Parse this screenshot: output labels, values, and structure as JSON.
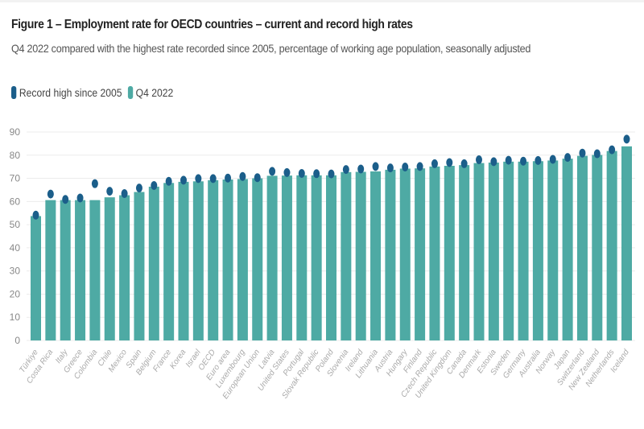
{
  "header": {
    "title": "Figure 1 – Employment rate for OECD countries – current and record high rates",
    "subtitle": "Q4 2022 compared with the highest rate recorded since 2005, percentage of working age population, seasonally adjusted"
  },
  "legend": [
    {
      "label": "Record high since 2005",
      "color": "#1b5e8a",
      "icon": "record-high-swatch"
    },
    {
      "label": "Q4 2022",
      "color": "#4eaaa4",
      "icon": "q4-2022-swatch"
    }
  ],
  "chart_data": {
    "type": "bar",
    "title": "Figure 1 – Employment rate for OECD countries – current and record high rates",
    "subtitle": "Q4 2022 compared with the highest rate recorded since 2005, percentage of working age population, seasonally adjusted",
    "xlabel": "",
    "ylabel": "",
    "ylim": [
      0,
      90
    ],
    "yticks": [
      0,
      10,
      20,
      30,
      40,
      50,
      60,
      70,
      80,
      90
    ],
    "grid": true,
    "legend_position": "top-left",
    "categories": [
      "Türkiye",
      "Costa Rica",
      "Italy",
      "Greece",
      "Colombia",
      "Chile",
      "Mexico",
      "Spain",
      "Belgium",
      "France",
      "Korea",
      "Israel",
      "OECD",
      "Euro area",
      "Luxembourg",
      "European Union",
      "Latvia",
      "United States",
      "Portugal",
      "Slovak Republic",
      "Poland",
      "Slovenia",
      "Ireland",
      "Lithuania",
      "Austria",
      "Hungary",
      "Finland",
      "Czech Republic",
      "United Kingdom",
      "Canada",
      "Denmark",
      "Estonia",
      "Sweden",
      "Germany",
      "Australia",
      "Norway",
      "Japan",
      "Switzerland",
      "New Zealand",
      "Netherlands",
      "Iceland"
    ],
    "series": [
      {
        "name": "Q4 2022",
        "mark": "bar",
        "color": "#4eaaa4",
        "values": [
          53.7,
          60.6,
          60.6,
          60.6,
          60.6,
          61.8,
          62.7,
          64.1,
          66.4,
          68.0,
          68.5,
          68.7,
          69.2,
          69.5,
          69.7,
          70.0,
          71.1,
          71.2,
          71.3,
          71.3,
          71.3,
          72.7,
          72.8,
          73.0,
          73.7,
          74.2,
          74.3,
          75.1,
          75.4,
          75.7,
          76.6,
          76.8,
          77.2,
          77.2,
          77.4,
          77.7,
          78.5,
          79.7,
          80.1,
          81.8,
          83.8
        ]
      },
      {
        "name": "Record high since 2005",
        "mark": "dot",
        "color": "#1b5e8a",
        "values": [
          54.1,
          63.2,
          60.9,
          61.5,
          67.7,
          64.4,
          63.4,
          65.8,
          66.9,
          68.7,
          69.2,
          69.9,
          69.9,
          70.1,
          70.8,
          70.3,
          73.0,
          72.5,
          72.1,
          72.0,
          71.9,
          73.8,
          74.0,
          75.1,
          74.5,
          74.9,
          75.1,
          76.3,
          76.8,
          76.3,
          78.0,
          77.2,
          77.8,
          77.4,
          77.7,
          78.2,
          79.0,
          80.9,
          80.6,
          82.3,
          86.9
        ]
      }
    ]
  }
}
